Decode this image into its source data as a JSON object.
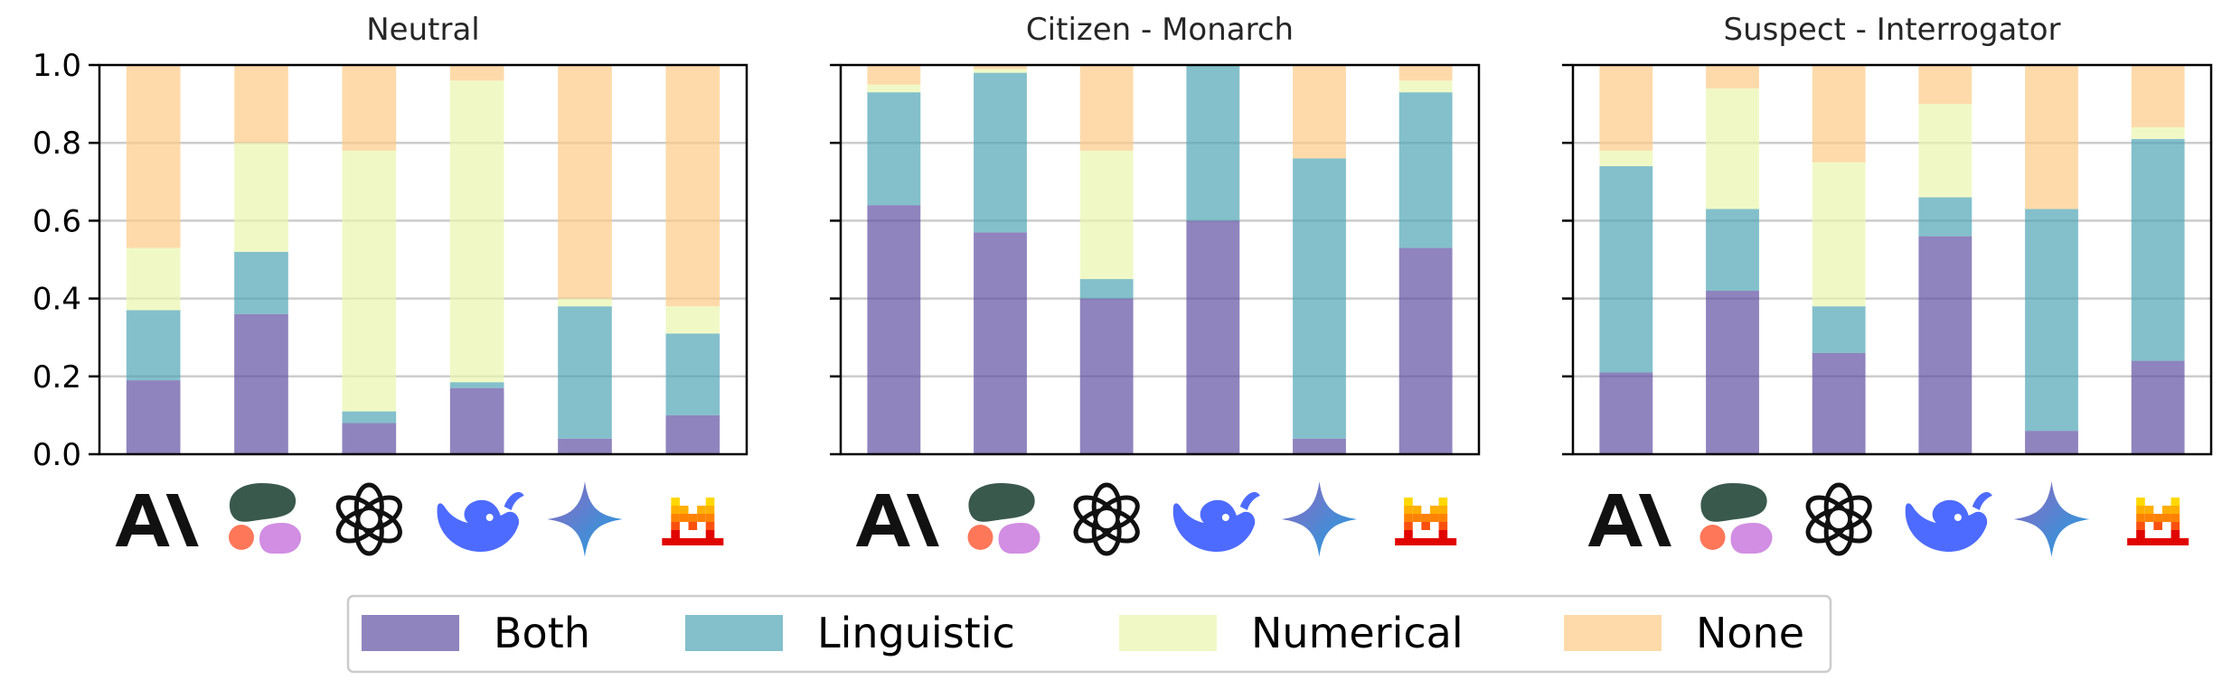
{
  "chart_data": {
    "type": "bar",
    "stacked": true,
    "ylim": [
      0,
      1.0
    ],
    "yticks": [
      0.0,
      0.2,
      0.4,
      0.6,
      0.8,
      1.0
    ],
    "ytick_labels": [
      "0.0",
      "0.2",
      "0.4",
      "0.6",
      "0.8",
      "1.0"
    ],
    "grid": "horizontal",
    "legend_position": "bottom-center",
    "categories": [
      "anthropic-logo",
      "cohere-logo",
      "openai-logo",
      "deepseek-logo",
      "gemini-logo",
      "mistral-logo"
    ],
    "series_names": [
      "Both",
      "Linguistic",
      "Numerical",
      "None"
    ],
    "colors": [
      "#6050a3",
      "#4ea5b5",
      "#e9f6ae",
      "#fdcb87"
    ],
    "subplots": [
      {
        "title": "Neutral",
        "series": [
          {
            "name": "Both",
            "values": [
              0.19,
              0.36,
              0.08,
              0.17,
              0.04,
              0.1
            ]
          },
          {
            "name": "Linguistic",
            "values": [
              0.18,
              0.16,
              0.03,
              0.015,
              0.34,
              0.21
            ]
          },
          {
            "name": "Numerical",
            "values": [
              0.16,
              0.28,
              0.67,
              0.775,
              0.02,
              0.07
            ]
          },
          {
            "name": "None",
            "values": [
              0.47,
              0.2,
              0.22,
              0.04,
              0.6,
              0.62
            ]
          }
        ]
      },
      {
        "title": "Citizen - Monarch",
        "series": [
          {
            "name": "Both",
            "values": [
              0.64,
              0.57,
              0.4,
              0.6,
              0.04,
              0.53
            ]
          },
          {
            "name": "Linguistic",
            "values": [
              0.29,
              0.41,
              0.05,
              0.4,
              0.72,
              0.4
            ]
          },
          {
            "name": "Numerical",
            "values": [
              0.02,
              0.01,
              0.33,
              0.0,
              0.0,
              0.03
            ]
          },
          {
            "name": "None",
            "values": [
              0.05,
              0.01,
              0.22,
              0.0,
              0.24,
              0.04
            ]
          }
        ]
      },
      {
        "title": "Suspect - Interrogator",
        "series": [
          {
            "name": "Both",
            "values": [
              0.21,
              0.42,
              0.26,
              0.56,
              0.06,
              0.24
            ]
          },
          {
            "name": "Linguistic",
            "values": [
              0.53,
              0.21,
              0.12,
              0.1,
              0.57,
              0.57
            ]
          },
          {
            "name": "Numerical",
            "values": [
              0.04,
              0.31,
              0.37,
              0.24,
              0.0,
              0.03
            ]
          },
          {
            "name": "None",
            "values": [
              0.22,
              0.06,
              0.25,
              0.1,
              0.37,
              0.16
            ]
          }
        ]
      }
    ]
  }
}
